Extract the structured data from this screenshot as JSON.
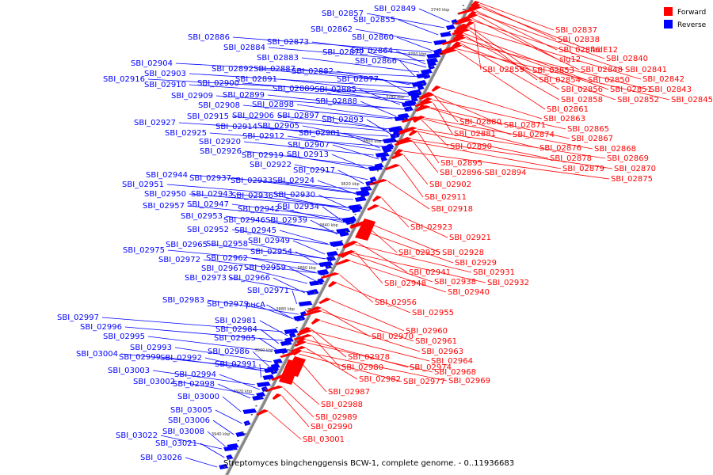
{
  "caption": "Streptomyces bingchenggensis BCW-1, complete genome. - 0..11936683",
  "colors": {
    "forward": "#ff0000",
    "reverse": "#0000ff",
    "axis": "#888888"
  },
  "legend": [
    {
      "label": "Forward",
      "color": "#ff0000"
    },
    {
      "label": "Reverse",
      "color": "#0000ff"
    }
  ],
  "ticks": [
    "3740 kbp",
    "3760 kbp",
    "3780 kbp",
    "3800 kbp",
    "3820 kbp",
    "3840 kbp",
    "3860 kbp",
    "3880 kbp",
    "3900 kbp",
    "3920 kbp",
    "3940 kbp"
  ],
  "reverse_genes": [
    "SBI_02849",
    "SBI_02857",
    "SBI_02855",
    "SBI_02862",
    "SBI_02860",
    "SBI_02886",
    "SBI_02884",
    "SBI_02873",
    "SBI_02872",
    "SBI_02864",
    "SBI_02883",
    "SBI_02866",
    "SBI_02904",
    "SBI_02892",
    "SBI_02887",
    "SBI_02882",
    "SBI_02903",
    "SBI_02891",
    "SBI_02877",
    "SBI_02916",
    "SBI_02910",
    "SBI_02900",
    "SBI_02889",
    "SBI_02885",
    "SBI_02909",
    "SBI_02899",
    "SBI_02888",
    "SBI_02908",
    "SBI_02898",
    "SBI_02915",
    "SBI_02906",
    "SBI_02897",
    "SBI_02893",
    "SBI_02927",
    "SBI_02914",
    "SBI_02905",
    "SBI_02925",
    "SBI_02912",
    "SBI_02901",
    "SBI_02920",
    "SBI_02907",
    "SBI_02926",
    "SBI_02919",
    "SBI_02913",
    "SBI_02922",
    "SBI_02917",
    "SBI_02944",
    "SBI_02937",
    "SBI_02933",
    "SBI_02924",
    "SBI_02951",
    "SBI_02950",
    "SBI_02943",
    "SBI_02936",
    "SBI_02930",
    "SBI_02957",
    "SBI_02947",
    "SBI_02942",
    "SBI_02934",
    "SBI_02953",
    "SBI_02946",
    "SBI_02939",
    "SBI_02952",
    "SBI_02945",
    "SBI_02965",
    "SBI_02958",
    "SBI_02949",
    "SBI_02975",
    "SBI_02954",
    "SBI_02972",
    "SBI_02962",
    "SBI_02967",
    "SBI_02959",
    "SBI_02973",
    "SBI_02966",
    "SBI_02971",
    "SBI_02983",
    "SBI_02979",
    "pucA",
    "SBI_02997",
    "SBI_02981",
    "SBI_02996",
    "SBI_02984",
    "SBI_02995",
    "SBI_02985",
    "SBI_02993",
    "SBI_03004",
    "SBI_02999",
    "SBI_02992",
    "SBI_02986",
    "SBI_02991",
    "SBI_03003",
    "SBI_02994",
    "SBI_03002",
    "SBI_02998",
    "SBI_03000",
    "SBI_03005",
    "SBI_03006",
    "SBI_03008",
    "SBI_03022",
    "SBI_03021",
    "SBI_03026"
  ],
  "forward_genes": [
    "SBI_02837",
    "SBI_02838",
    "fadE12",
    "SBI_02846",
    "SBI_02840",
    "sig12",
    "SBI_02848",
    "SBI_02841",
    "SBI_02859",
    "SBI_02853",
    "SBI_02842",
    "SBI_02854",
    "SBI_02850",
    "SBI_02856",
    "SBI_02851",
    "SBI_02843",
    "SBI_02858",
    "SBI_02852",
    "SBI_02845",
    "SBI_02861",
    "SBI_02863",
    "SBI_02880",
    "SBI_02871",
    "SBI_02881",
    "SBI_02874",
    "SBI_02865",
    "SBI_02867",
    "SBI_02890",
    "SBI_02876",
    "SBI_02868",
    "SBI_02878",
    "SBI_02869",
    "SBI_02895",
    "SBI_02879",
    "SBI_02870",
    "SBI_02896-SBI_02894",
    "SBI_02875",
    "SBI_02902",
    "SBI_02911",
    "SBI_02918",
    "SBI_02923",
    "SBI_02921",
    "SBI_02935",
    "SBI_02928",
    "SBI_02929",
    "SBI_02931",
    "SBI_02941",
    "SBI_02948",
    "SBI_02938",
    "SBI_02932",
    "SBI_02940",
    "SBI_02956",
    "SBI_02955",
    "SBI_02960",
    "SBI_02970",
    "SBI_02961",
    "SBI_02963",
    "SBI_02978",
    "SBI_02964",
    "SBI_02980",
    "SBI_02974",
    "SBI_02968",
    "SBI_02982",
    "SBI_02977",
    "SBI_02969",
    "SBI_02987",
    "SBI_02988",
    "SBI_02989",
    "SBI_02990",
    "SBI_03001"
  ]
}
